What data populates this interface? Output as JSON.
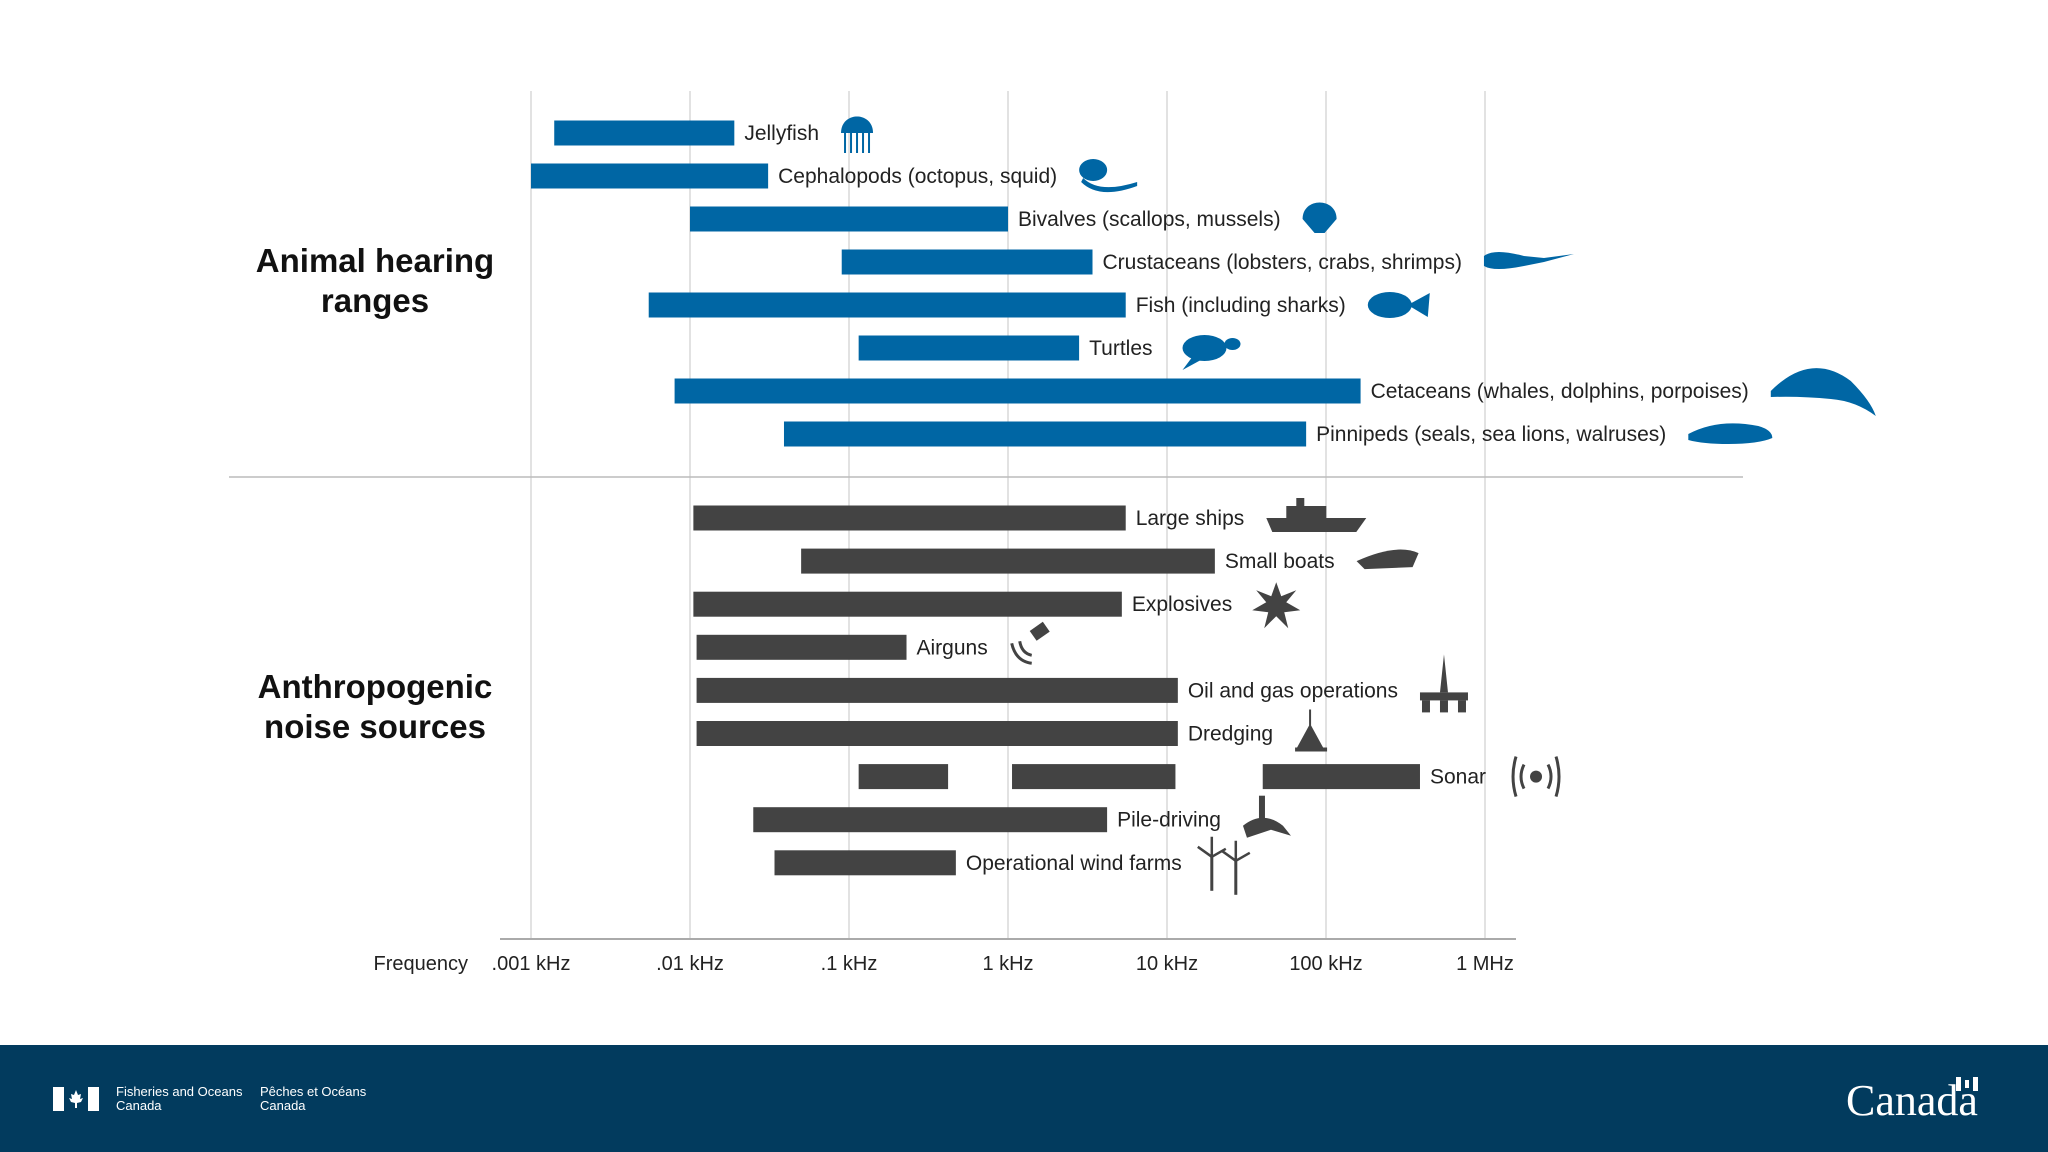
{
  "chart_data": {
    "type": "bar",
    "orientation": "horizontal-range",
    "xscale": "log",
    "xlabel": "Frequency",
    "xlim_khz": [
      0.001,
      1000
    ],
    "ticks": [
      {
        "value": 0.001,
        "label": ".001 kHz"
      },
      {
        "value": 0.01,
        "label": ".01 kHz"
      },
      {
        "value": 0.1,
        "label": ".1 kHz"
      },
      {
        "value": 1,
        "label": "1 kHz"
      },
      {
        "value": 10,
        "label": "10 kHz"
      },
      {
        "value": 100,
        "label": "100 kHz"
      },
      {
        "value": 1000,
        "label": "1 MHz"
      }
    ],
    "grid": "vertical",
    "groups": [
      {
        "title": "Animal hearing ranges",
        "color": "#0066a4",
        "items": [
          {
            "label": "Jellyfish",
            "icon": "jellyfish-icon",
            "ranges": [
              [
                0.0014,
                0.019
              ]
            ]
          },
          {
            "label": "Cephalopods (octopus, squid)",
            "icon": "octopus-icon",
            "ranges": [
              [
                0.001,
                0.031
              ]
            ]
          },
          {
            "label": "Bivalves (scallops, mussels)",
            "icon": "scallop-icon",
            "ranges": [
              [
                0.01,
                1
              ]
            ]
          },
          {
            "label": "Crustaceans (lobsters, crabs, shrimps)",
            "icon": "lobster-icon",
            "ranges": [
              [
                0.09,
                3.4
              ]
            ]
          },
          {
            "label": "Fish (including sharks)",
            "icon": "fish-icon",
            "ranges": [
              [
                0.0055,
                5.5
              ]
            ]
          },
          {
            "label": "Turtles",
            "icon": "turtle-icon",
            "ranges": [
              [
                0.115,
                2.8
              ]
            ]
          },
          {
            "label": "Cetaceans (whales, dolphins, porpoises)",
            "icon": "dolphin-icon",
            "ranges": [
              [
                0.008,
                165
              ]
            ]
          },
          {
            "label": "Pinnipeds (seals, sea lions, walruses)",
            "icon": "seal-icon",
            "ranges": [
              [
                0.039,
                75
              ]
            ]
          }
        ]
      },
      {
        "title": "Anthropogenic noise sources",
        "color": "#434343",
        "items": [
          {
            "label": "Large ships",
            "icon": "ship-icon",
            "ranges": [
              [
                0.0105,
                5.5
              ]
            ]
          },
          {
            "label": "Small boats",
            "icon": "boat-icon",
            "ranges": [
              [
                0.05,
                20
              ]
            ]
          },
          {
            "label": "Explosives",
            "icon": "explosion-icon",
            "ranges": [
              [
                0.0105,
                5.2
              ]
            ]
          },
          {
            "label": "Airguns",
            "icon": "airgun-icon",
            "ranges": [
              [
                0.011,
                0.23
              ]
            ]
          },
          {
            "label": "Oil and gas operations",
            "icon": "oil-rig-icon",
            "ranges": [
              [
                0.011,
                11.7
              ]
            ]
          },
          {
            "label": "Dredging",
            "icon": "dredge-icon",
            "ranges": [
              [
                0.011,
                11.7
              ]
            ]
          },
          {
            "label": "Sonar",
            "icon": "sonar-icon",
            "ranges": [
              [
                0.115,
                0.42
              ],
              [
                1.06,
                11.3
              ],
              [
                40,
                390
              ]
            ]
          },
          {
            "label": "Pile-driving",
            "icon": "pile-driving-icon",
            "ranges": [
              [
                0.025,
                4.2
              ]
            ]
          },
          {
            "label": "Operational wind farms",
            "icon": "wind-turbine-icon",
            "ranges": [
              [
                0.034,
                0.47
              ]
            ]
          }
        ]
      }
    ]
  },
  "footer": {
    "dept_en": [
      "Fisheries and Oceans",
      "Canada"
    ],
    "dept_fr": [
      "Pêches et Océans",
      "Canada"
    ],
    "wordmark": "Canada",
    "background": "#023b5e"
  }
}
